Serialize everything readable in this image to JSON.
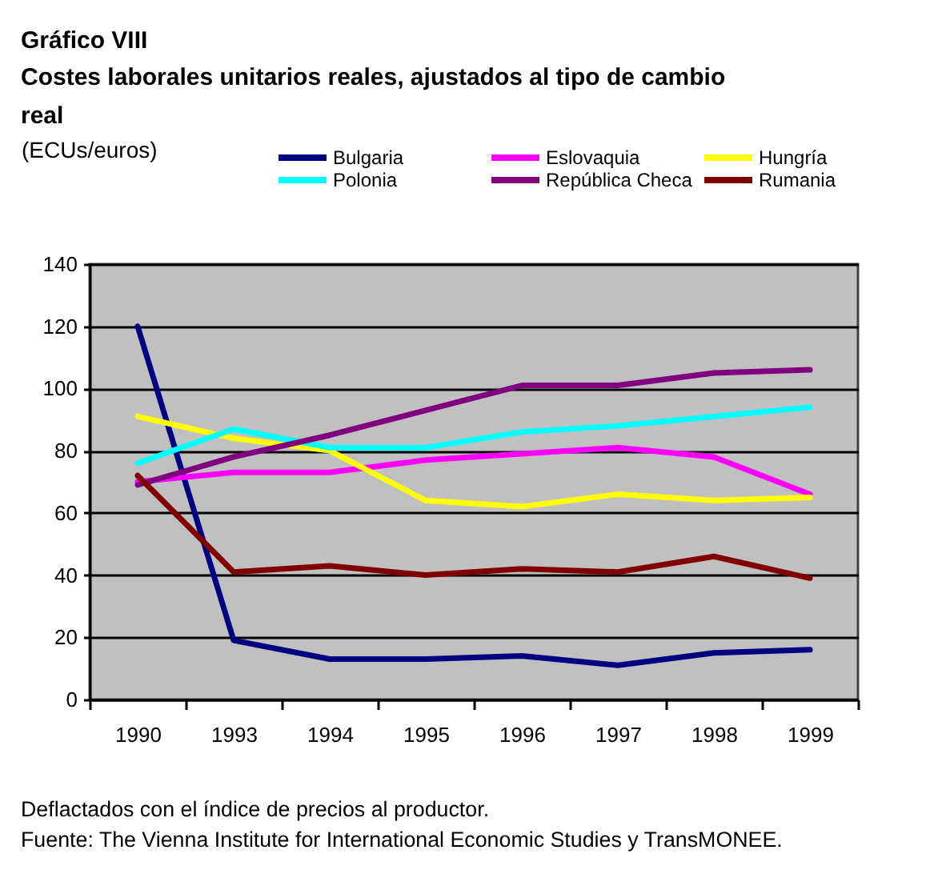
{
  "chart_data": {
    "type": "line",
    "title": "Gráfico VIII",
    "subtitle": "Costes laborales unitarios reales, ajustados al tipo de cambio real",
    "ylabel": "(ECUs/euros)",
    "categories": [
      "1990",
      "1993",
      "1994",
      "1995",
      "1996",
      "1997",
      "1998",
      "1999"
    ],
    "series": [
      {
        "name": "Bulgaria",
        "color": "#000080",
        "values": [
          120,
          19,
          13,
          13,
          14,
          11,
          15,
          16
        ]
      },
      {
        "name": "Eslovaquia",
        "color": "#ff00ff",
        "values": [
          70,
          73,
          73,
          77,
          79,
          81,
          78,
          66
        ]
      },
      {
        "name": "Hungría",
        "color": "#ffff00",
        "values": [
          91,
          84,
          80,
          64,
          62,
          66,
          64,
          65
        ]
      },
      {
        "name": "Polonia",
        "color": "#00ffff",
        "values": [
          76,
          87,
          81,
          81,
          86,
          88,
          91,
          94
        ]
      },
      {
        "name": "República Checa",
        "color": "#800080",
        "values": [
          69,
          78,
          85,
          93,
          101,
          101,
          105,
          106
        ]
      },
      {
        "name": "Rumania",
        "color": "#800000",
        "values": [
          72,
          41,
          43,
          40,
          42,
          41,
          46,
          39
        ]
      }
    ],
    "ylim": [
      0,
      140
    ],
    "yticks": [
      0,
      20,
      40,
      60,
      80,
      100,
      120,
      140
    ],
    "grid": "y",
    "legend": "top",
    "annotations": [
      "Deflactados con el índice de precios al productor.",
      "Fuente: The Vienna Institute for International Economic Studies y TransMONEE."
    ]
  }
}
